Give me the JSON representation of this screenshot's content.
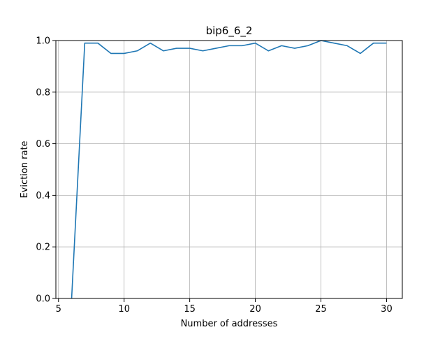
{
  "chart_data": {
    "type": "line",
    "title": "bip6_6_2",
    "xlabel": "Number of addresses",
    "ylabel": "Eviction rate",
    "xlim": [
      4.8,
      31.2
    ],
    "ylim": [
      0.0,
      1.0
    ],
    "xticks": [
      5,
      10,
      15,
      20,
      25,
      30
    ],
    "xtick_labels": [
      "5",
      "10",
      "15",
      "20",
      "25",
      "30"
    ],
    "yticks": [
      0.0,
      0.2,
      0.4,
      0.6,
      0.8,
      1.0
    ],
    "ytick_labels": [
      "0.0",
      "0.2",
      "0.4",
      "0.6",
      "0.8",
      "1.0"
    ],
    "grid": true,
    "legend": "none",
    "series": [
      {
        "color": "#1f77b4",
        "x": [
          6,
          7,
          8,
          9,
          10,
          11,
          12,
          13,
          14,
          15,
          16,
          17,
          18,
          19,
          20,
          21,
          22,
          23,
          24,
          25,
          26,
          27,
          28,
          29,
          30
        ],
        "y": [
          0.0,
          0.99,
          0.99,
          0.95,
          0.95,
          0.96,
          0.99,
          0.96,
          0.97,
          0.97,
          0.96,
          0.97,
          0.98,
          0.98,
          0.99,
          0.96,
          0.98,
          0.97,
          0.98,
          1.0,
          0.99,
          0.98,
          0.95,
          0.99,
          0.99
        ]
      }
    ]
  }
}
